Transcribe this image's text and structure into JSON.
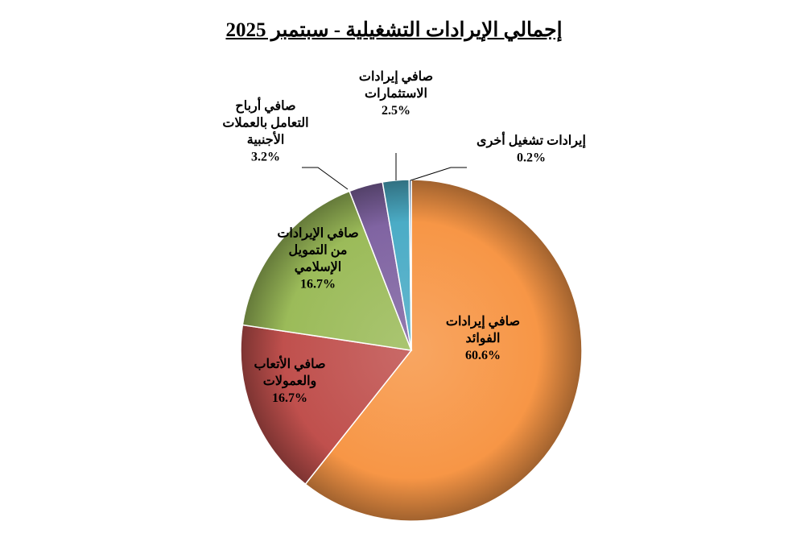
{
  "chart_data": {
    "type": "pie",
    "title": "إجمالي الإيرادات التشغيلية - سبتمبر 2025",
    "slices": [
      {
        "label_lines": [
          "صافي إيرادات",
          "الفوائد"
        ],
        "value": 60.6,
        "value_text": "60.6%",
        "color": "#F79646"
      },
      {
        "label_lines": [
          "صافي الأتعاب",
          "والعمولات"
        ],
        "value": 16.7,
        "value_text": "16.7%",
        "color": "#C0504D"
      },
      {
        "label_lines": [
          "صافي الإيرادات",
          "من التمويل",
          "الإسلامي"
        ],
        "value": 16.7,
        "value_text": "16.7%",
        "color": "#9BBB59"
      },
      {
        "label_lines": [
          "صافي أرباح",
          "التعامل بالعملات",
          "الأجنبية"
        ],
        "value": 3.2,
        "value_text": "3.2%",
        "color": "#8064A2"
      },
      {
        "label_lines": [
          "صافي إيرادات",
          "الاستثمارات"
        ],
        "value": 2.5,
        "value_text": "2.5%",
        "color": "#4BACC6"
      },
      {
        "label_lines": [
          "إيرادات تشغيل أخرى"
        ],
        "value": 0.2,
        "value_text": "0.2%",
        "color": "#4F81BD"
      }
    ],
    "legend": "none"
  }
}
